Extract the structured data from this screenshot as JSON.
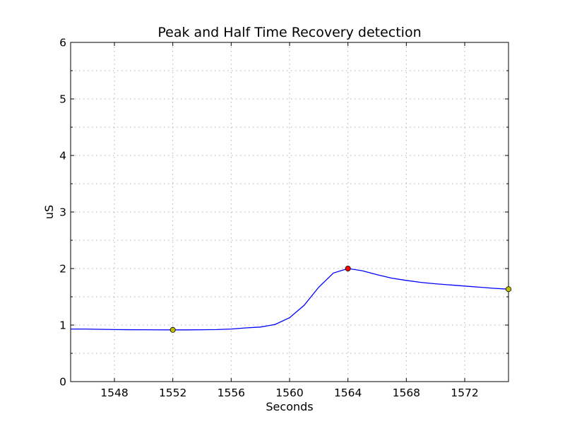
{
  "chart_data": {
    "type": "line",
    "title": "Peak and Half Time Recovery detection",
    "xlabel": "Seconds",
    "ylabel": "uS",
    "xlim": [
      1545,
      1575
    ],
    "ylim": [
      0,
      6
    ],
    "xticks": [
      1548,
      1552,
      1556,
      1560,
      1564,
      1568,
      1572
    ],
    "yticks": [
      0,
      1,
      2,
      3,
      4,
      5,
      6
    ],
    "grid": true,
    "series": [
      {
        "color": "#0000ff",
        "x": [
          1545,
          1546,
          1547,
          1548,
          1549,
          1550,
          1551,
          1552,
          1553,
          1554,
          1555,
          1556,
          1557,
          1558,
          1559,
          1560,
          1561,
          1562,
          1563,
          1564,
          1565,
          1566,
          1567,
          1568,
          1569,
          1570,
          1571,
          1572,
          1573,
          1574,
          1575
        ],
        "y": [
          0.93,
          0.93,
          0.925,
          0.92,
          0.918,
          0.917,
          0.916,
          0.915,
          0.915,
          0.917,
          0.92,
          0.93,
          0.95,
          0.965,
          1.01,
          1.13,
          1.35,
          1.67,
          1.92,
          2.0,
          1.96,
          1.89,
          1.83,
          1.79,
          1.755,
          1.73,
          1.71,
          1.69,
          1.67,
          1.65,
          1.635
        ]
      }
    ],
    "markers": [
      {
        "x": 1552,
        "y": 0.915,
        "color": "#bfbf00"
      },
      {
        "x": 1564,
        "y": 2.0,
        "color": "#ff0000"
      },
      {
        "x": 1575,
        "y": 1.635,
        "color": "#bfbf00"
      }
    ]
  }
}
